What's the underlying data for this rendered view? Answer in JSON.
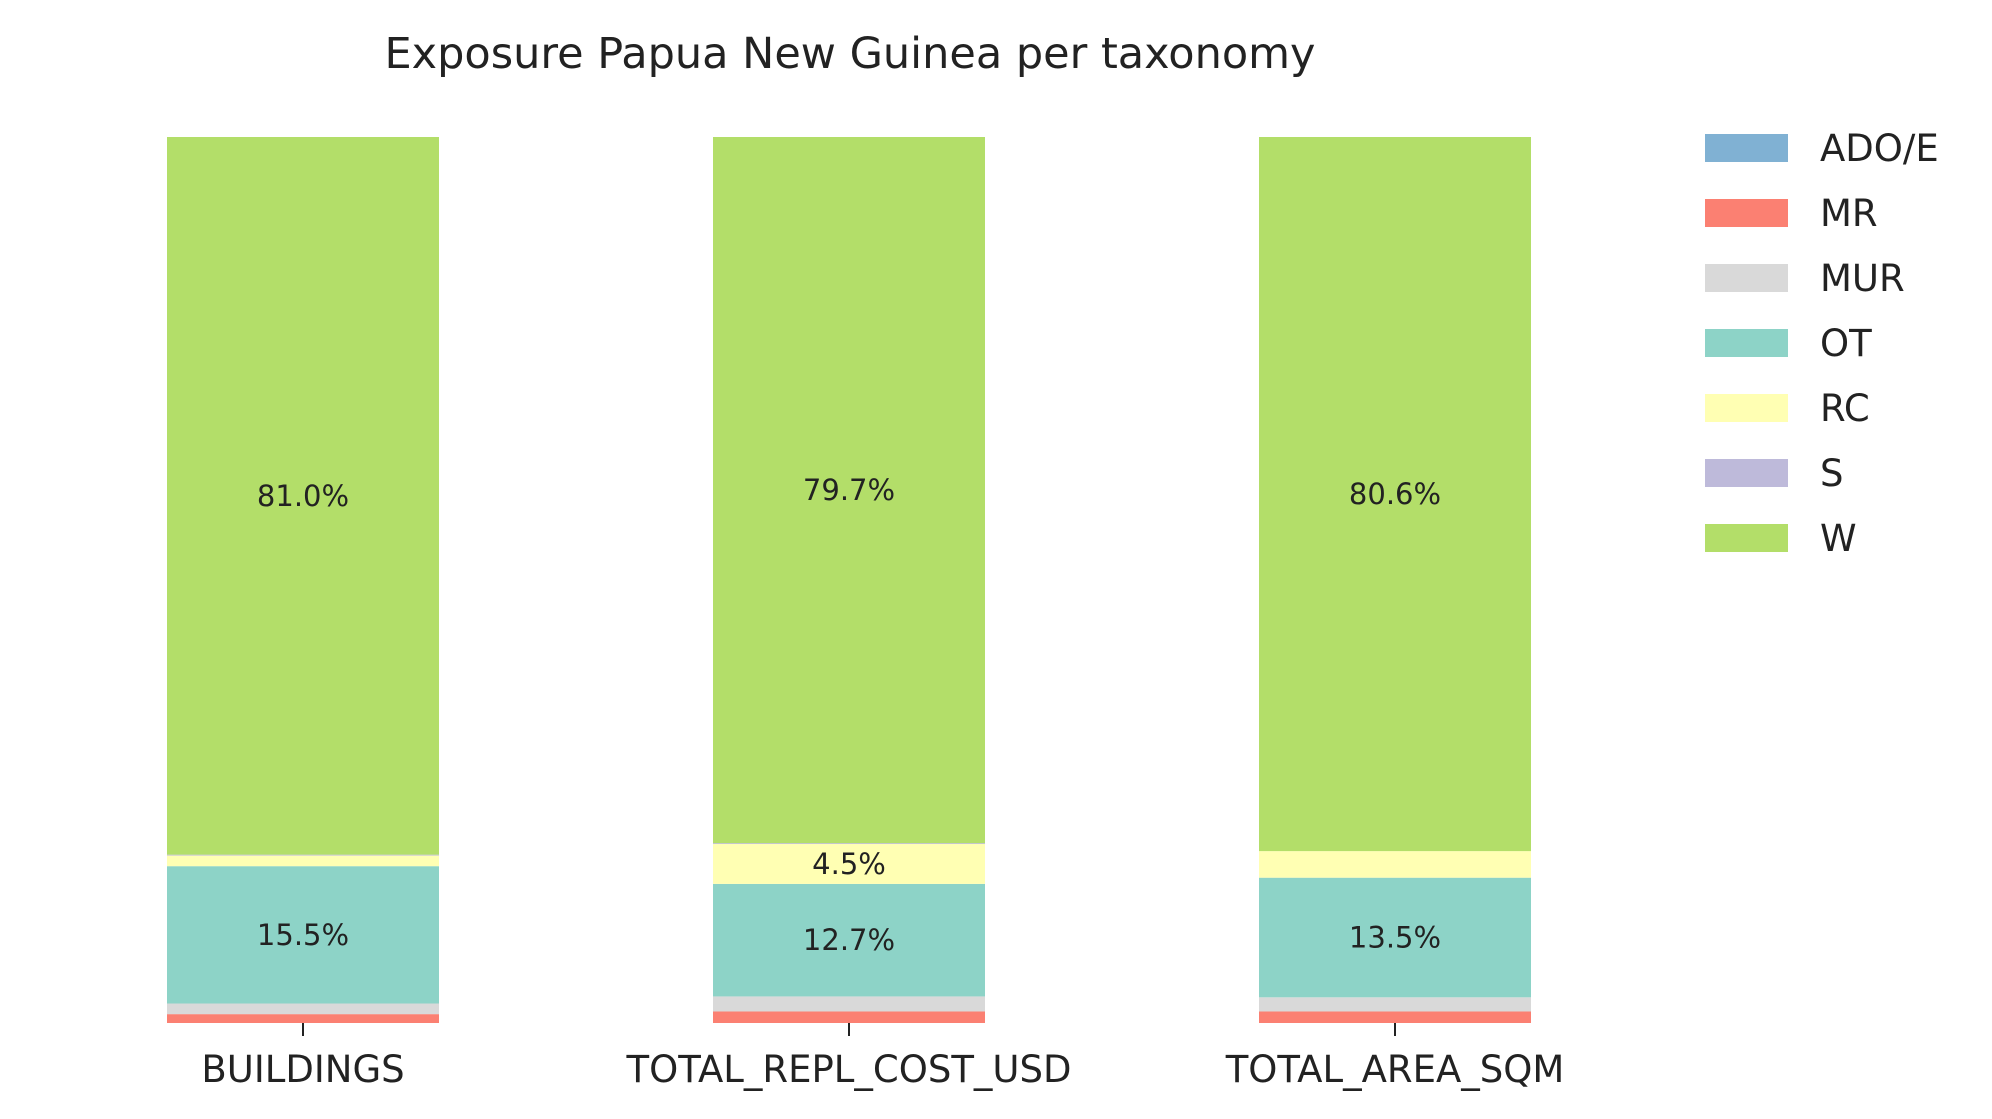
{
  "chart_data": {
    "type": "bar",
    "stacked": true,
    "normalized": true,
    "title": "Exposure Papua New Guinea per taxonomy",
    "xlabel": "",
    "ylabel": "",
    "ylim": [
      0,
      100
    ],
    "grid": false,
    "legend_position": "right",
    "categories": [
      "BUILDINGS",
      "TOTAL_REPL_COST_USD",
      "TOTAL_AREA_SQM"
    ],
    "series": [
      {
        "name": "ADO/E",
        "color": "#80b1d3",
        "values": [
          0.0,
          0.0,
          0.0
        ]
      },
      {
        "name": "MR",
        "color": "#fb8072",
        "values": [
          1.0,
          1.3,
          1.3
        ]
      },
      {
        "name": "MUR",
        "color": "#d9d9d9",
        "values": [
          1.2,
          1.7,
          1.6
        ]
      },
      {
        "name": "OT",
        "color": "#8dd3c7",
        "values": [
          15.5,
          12.7,
          13.5
        ]
      },
      {
        "name": "RC",
        "color": "#ffffb3",
        "values": [
          1.2,
          4.5,
          3.0
        ]
      },
      {
        "name": "S",
        "color": "#bebada",
        "values": [
          0.1,
          0.1,
          0.0
        ]
      },
      {
        "name": "W",
        "color": "#b3de69",
        "values": [
          81.0,
          79.7,
          80.6
        ]
      }
    ],
    "data_labels": [
      [
        "",
        "",
        "",
        "15.5%",
        "",
        "",
        "81.0%"
      ],
      [
        "",
        "",
        "",
        "12.7%",
        "4.5%",
        "",
        "79.7%"
      ],
      [
        "",
        "",
        "",
        "13.5%",
        "",
        "",
        "80.6%"
      ]
    ]
  }
}
